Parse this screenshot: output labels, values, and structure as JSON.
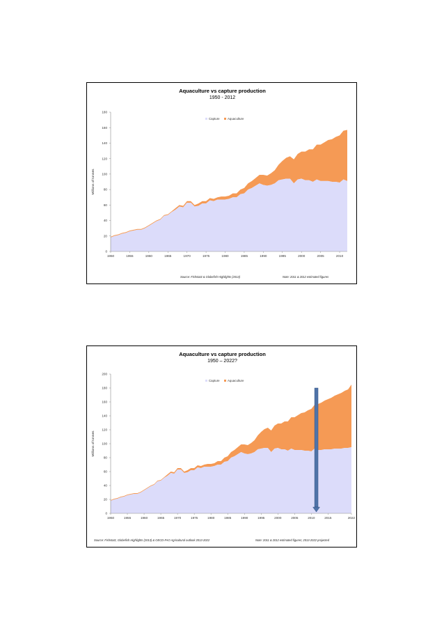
{
  "colors": {
    "capture": "#dcdcfa",
    "aquaculture": "#f59a55",
    "arrow": "#4f73a8",
    "arrow_stroke": "#2d4a78",
    "axis": "#8c8c8c"
  },
  "chart_data": [
    {
      "type": "area",
      "stacked": true,
      "title": "Aquaculture vs capture production",
      "subtitle": "1950 - 2012",
      "xlabel": "",
      "ylabel": "Millions of tonnes",
      "xlim": [
        1950,
        2012
      ],
      "ylim": [
        0,
        180
      ],
      "yticks": [
        0,
        20,
        40,
        60,
        80,
        100,
        120,
        140,
        160,
        180
      ],
      "xticks": [
        1950,
        1955,
        1960,
        1965,
        1970,
        1975,
        1980,
        1985,
        1990,
        1995,
        2000,
        2005,
        2010
      ],
      "legend": {
        "position": "top-right",
        "entries": [
          "Capture",
          "Aquaculture"
        ]
      },
      "source": "Source:  Fishstatz & Globefish Highlights (2013)",
      "note": "Note: 2011 & 2012 estimated figures",
      "x": [
        1950,
        1951,
        1952,
        1953,
        1954,
        1955,
        1956,
        1957,
        1958,
        1959,
        1960,
        1961,
        1962,
        1963,
        1964,
        1965,
        1966,
        1967,
        1968,
        1969,
        1970,
        1971,
        1972,
        1973,
        1974,
        1975,
        1976,
        1977,
        1978,
        1979,
        1980,
        1981,
        1982,
        1983,
        1984,
        1985,
        1986,
        1987,
        1988,
        1989,
        1990,
        1991,
        1992,
        1993,
        1994,
        1995,
        1996,
        1997,
        1998,
        1999,
        2000,
        2001,
        2002,
        2003,
        2004,
        2005,
        2006,
        2007,
        2008,
        2009,
        2010,
        2011,
        2012
      ],
      "series": [
        {
          "name": "Capture",
          "values": [
            18,
            20,
            21,
            23,
            24,
            26,
            27,
            28,
            28,
            30,
            33,
            36,
            39,
            41,
            46,
            47,
            51,
            54,
            58,
            57,
            63,
            63,
            58,
            59,
            62,
            62,
            66,
            65,
            67,
            67,
            67,
            68,
            70,
            70,
            74,
            75,
            80,
            82,
            85,
            88,
            86,
            85,
            86,
            88,
            92,
            93,
            94,
            94,
            88,
            93,
            94,
            92,
            92,
            90,
            93,
            91,
            91,
            91,
            90,
            90,
            89,
            93,
            91
          ]
        },
        {
          "name": "Aquaculture",
          "values": [
            1,
            1,
            1,
            1,
            1,
            1,
            1,
            1,
            1,
            1,
            1,
            1,
            1,
            1,
            1,
            1,
            1,
            2,
            2,
            2,
            2,
            2,
            2,
            3,
            3,
            3,
            3,
            3,
            3,
            4,
            4,
            4,
            5,
            5,
            6,
            7,
            8,
            9,
            10,
            11,
            13,
            13,
            15,
            17,
            20,
            24,
            27,
            29,
            31,
            33,
            35,
            37,
            40,
            42,
            45,
            47,
            50,
            53,
            55,
            58,
            61,
            63,
            66
          ]
        }
      ]
    },
    {
      "type": "area",
      "stacked": true,
      "title": "Aquaculture vs capture production",
      "subtitle": "1950 – 2022?",
      "xlabel": "",
      "ylabel": "Millions of tonnes",
      "xlim": [
        1950,
        2022
      ],
      "ylim": [
        0,
        200
      ],
      "yticks": [
        0,
        20,
        40,
        60,
        80,
        100,
        120,
        140,
        160,
        180,
        200
      ],
      "xticks": [
        1950,
        1955,
        1960,
        1965,
        1970,
        1975,
        1980,
        1985,
        1990,
        1995,
        2000,
        2005,
        2010,
        2015,
        2022
      ],
      "legend": {
        "position": "top-right",
        "entries": [
          "Capture",
          "Aquaculture"
        ]
      },
      "source": "Source:  Fishstatz, Globefish Highlights (2013) & OECD-FAO Agricultural outlook 2013-2022",
      "note": "Note: 2011 & 2012 estimated figures; 2013-2022 projected",
      "marker_year": 2011.5,
      "x": [
        1950,
        1951,
        1952,
        1953,
        1954,
        1955,
        1956,
        1957,
        1958,
        1959,
        1960,
        1961,
        1962,
        1963,
        1964,
        1965,
        1966,
        1967,
        1968,
        1969,
        1970,
        1971,
        1972,
        1973,
        1974,
        1975,
        1976,
        1977,
        1978,
        1979,
        1980,
        1981,
        1982,
        1983,
        1984,
        1985,
        1986,
        1987,
        1988,
        1989,
        1990,
        1991,
        1992,
        1993,
        1994,
        1995,
        1996,
        1997,
        1998,
        1999,
        2000,
        2001,
        2002,
        2003,
        2004,
        2005,
        2006,
        2007,
        2008,
        2009,
        2010,
        2011,
        2012,
        2013,
        2014,
        2015,
        2016,
        2017,
        2018,
        2019,
        2020,
        2021,
        2022
      ],
      "series": [
        {
          "name": "Capture",
          "values": [
            18,
            20,
            21,
            23,
            24,
            26,
            27,
            28,
            28,
            30,
            33,
            36,
            39,
            41,
            46,
            47,
            51,
            54,
            58,
            57,
            63,
            63,
            58,
            59,
            62,
            62,
            66,
            65,
            67,
            67,
            67,
            68,
            70,
            70,
            74,
            75,
            80,
            82,
            85,
            88,
            86,
            85,
            86,
            88,
            92,
            93,
            94,
            94,
            88,
            93,
            94,
            92,
            92,
            90,
            93,
            91,
            91,
            91,
            90,
            90,
            89,
            93,
            91,
            91,
            92,
            92,
            92,
            93,
            93,
            93,
            94,
            94,
            95
          ]
        },
        {
          "name": "Aquaculture",
          "values": [
            1,
            1,
            1,
            1,
            1,
            1,
            1,
            1,
            1,
            1,
            1,
            1,
            1,
            1,
            1,
            1,
            1,
            2,
            2,
            2,
            2,
            2,
            2,
            3,
            3,
            3,
            3,
            3,
            3,
            4,
            4,
            4,
            5,
            5,
            6,
            7,
            8,
            9,
            10,
            11,
            13,
            13,
            15,
            17,
            20,
            24,
            27,
            29,
            31,
            33,
            35,
            37,
            40,
            42,
            45,
            47,
            50,
            53,
            55,
            58,
            61,
            63,
            66,
            68,
            70,
            72,
            74,
            76,
            78,
            80,
            82,
            84,
            90
          ]
        }
      ]
    }
  ]
}
